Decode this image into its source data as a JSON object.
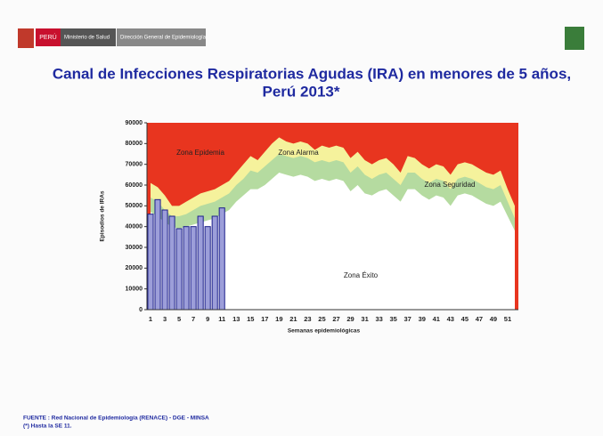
{
  "header": {
    "country": "PERÚ",
    "ministry": "Ministerio de Salud",
    "office": "Dirección General de Epidemiología"
  },
  "chart_data": {
    "type": "endemic-channel",
    "title": "Canal de Infecciones Respiratorias Agudas (IRA) en menores de 5 años,",
    "subtitle": "Perú 2013*",
    "y_label": "Episodios de IRAs",
    "x_label": "Semanas epidemiológicas",
    "epidemic_label": "Zona Epidemia",
    "epidemic_color": "#e8351f",
    "categories": [
      1,
      null,
      3,
      null,
      5,
      null,
      7,
      null,
      9,
      null,
      11,
      null,
      13,
      null,
      15,
      null,
      17,
      null,
      19,
      null,
      21,
      null,
      23,
      null,
      25,
      null,
      27,
      null,
      29,
      null,
      31,
      null,
      33,
      null,
      35,
      null,
      37,
      null,
      39,
      null,
      41,
      null,
      43,
      null,
      45,
      null,
      47,
      null,
      49,
      null,
      51,
      null
    ],
    "series": [
      {
        "name": "Zona Alarma",
        "color": "#f5f29c",
        "values": [
          61000,
          59000,
          55000,
          50000,
          50000,
          52000,
          54000,
          56000,
          57000,
          58000,
          60000,
          62000,
          66000,
          70000,
          74000,
          72000,
          76000,
          80000,
          83000,
          81000,
          80000,
          81000,
          80000,
          77000,
          79000,
          78000,
          79000,
          78000,
          73000,
          76000,
          72000,
          70000,
          72000,
          73000,
          70000,
          66000,
          74000,
          73000,
          70000,
          68000,
          70000,
          69000,
          65000,
          70000,
          71000,
          70000,
          68000,
          66000,
          65000,
          67000,
          58000,
          50000
        ]
      },
      {
        "name": "Zona Seguridad",
        "color": "#b5dba0",
        "values": [
          54000,
          52000,
          48000,
          45000,
          45000,
          46000,
          48000,
          50000,
          51000,
          52000,
          54000,
          56000,
          60000,
          63000,
          67000,
          66000,
          69000,
          72000,
          75000,
          74000,
          73000,
          74000,
          73000,
          71000,
          72000,
          71000,
          72000,
          71000,
          66000,
          69000,
          65000,
          63000,
          65000,
          66000,
          63000,
          60000,
          66000,
          66000,
          63000,
          61000,
          63000,
          62000,
          58000,
          63000,
          64000,
          63000,
          61000,
          59000,
          58000,
          60000,
          52000,
          44000
        ]
      },
      {
        "name": "Zona Éxito",
        "color": "#ffffff",
        "values": [
          47000,
          45000,
          42000,
          40000,
          39000,
          40000,
          41000,
          42000,
          43000,
          44000,
          46000,
          48000,
          52000,
          55000,
          58000,
          58000,
          60000,
          63000,
          66000,
          65000,
          64000,
          65000,
          64000,
          62000,
          63000,
          62000,
          63000,
          62000,
          57000,
          60000,
          56000,
          55000,
          57000,
          58000,
          55000,
          52000,
          58000,
          58000,
          55000,
          53000,
          55000,
          54000,
          50000,
          55000,
          56000,
          55000,
          53000,
          51000,
          50000,
          52000,
          45000,
          38000
        ]
      }
    ],
    "bars": {
      "color": "#9c9ed9",
      "values": [
        46000,
        53000,
        48000,
        45000,
        39000,
        40000,
        40000,
        45000,
        40000,
        45000,
        49000
      ]
    },
    "ylim": [
      0,
      90000
    ],
    "yticks": [
      0,
      10000,
      20000,
      30000,
      40000,
      50000,
      60000,
      70000,
      80000,
      90000
    ]
  },
  "footer": [
    "FUENTE : Red Nacional de Epidemiología (RENACE) - DGE - MINSA",
    "(*) Hasta la SE 11."
  ]
}
